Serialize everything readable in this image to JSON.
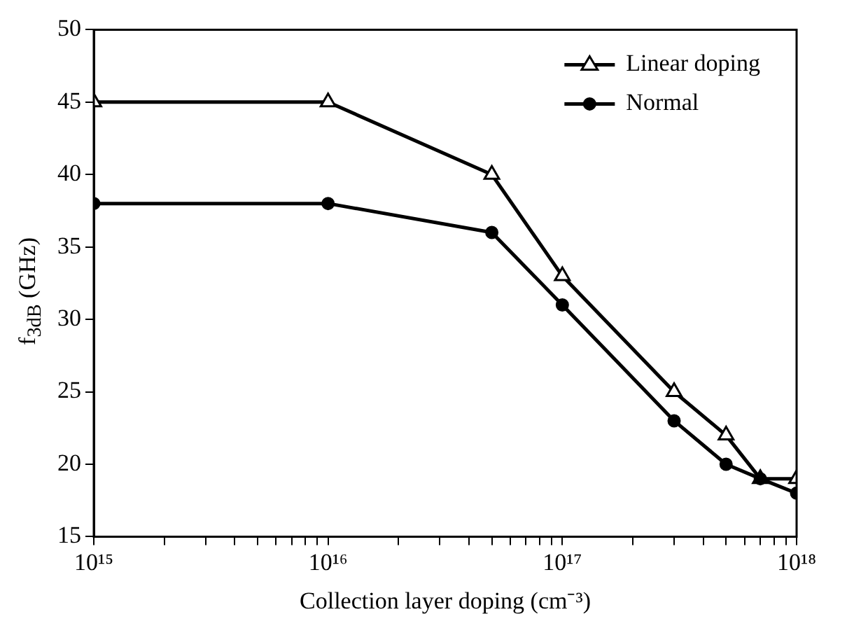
{
  "chart_data": {
    "type": "line",
    "xlabel": "Collection layer doping (cm⁻³)",
    "ylabel": "f$_{3dB}$ (GHz)",
    "x": [
      1000000000000000.0,
      1e+16,
      5e+16,
      1e+17,
      3e+17,
      5e+17,
      7e+17,
      1e+18
    ],
    "series": [
      {
        "name": "Linear doping",
        "color": "#000000",
        "marker": "triangle",
        "values": [
          45,
          45,
          40,
          33,
          25,
          22,
          19,
          19
        ]
      },
      {
        "name": "Normal",
        "color": "#000000",
        "marker": "circle",
        "values": [
          38,
          38,
          36,
          31,
          23,
          20,
          19,
          18
        ]
      }
    ],
    "log": "x",
    "xlim": [
      1000000000000000.0,
      1e+18
    ],
    "xticks": [
      {
        "value": 1000000000000000.0,
        "label": "10¹⁵"
      },
      {
        "value": 2000000000000000.0,
        "label": null
      },
      {
        "value": 3000000000000000.0,
        "label": null
      },
      {
        "value": 4000000000000000.0,
        "label": null
      },
      {
        "value": 5000000000000000.0,
        "label": null
      },
      {
        "value": 6000000000000000.0,
        "label": null
      },
      {
        "value": 7000000000000000.0,
        "label": null
      },
      {
        "value": 8000000000000000.0,
        "label": null
      },
      {
        "value": 9000000000000000.0,
        "label": null
      },
      {
        "value": 1e+16,
        "label": "10¹⁶"
      },
      {
        "value": 2e+16,
        "label": null
      },
      {
        "value": 3e+16,
        "label": null
      },
      {
        "value": 4e+16,
        "label": null
      },
      {
        "value": 5e+16,
        "label": null
      },
      {
        "value": 6e+16,
        "label": null
      },
      {
        "value": 7e+16,
        "label": null
      },
      {
        "value": 8e+16,
        "label": null
      },
      {
        "value": 9e+16,
        "label": null
      },
      {
        "value": 1e+17,
        "label": "10¹⁷"
      },
      {
        "value": 2e+17,
        "label": null
      },
      {
        "value": 3e+17,
        "label": null
      },
      {
        "value": 4e+17,
        "label": null
      },
      {
        "value": 5e+17,
        "label": null
      },
      {
        "value": 6e+17,
        "label": null
      },
      {
        "value": 7e+17,
        "label": null
      },
      {
        "value": 8e+17,
        "label": null
      },
      {
        "value": 9e+17,
        "label": null
      },
      {
        "value": 1e+18,
        "label": "10¹⁸"
      }
    ],
    "ylim": [
      15,
      50
    ],
    "yticks": [
      15,
      20,
      25,
      30,
      35,
      40,
      45,
      50
    ],
    "grid": false,
    "legend": "top right",
    "line_style": "solid"
  }
}
